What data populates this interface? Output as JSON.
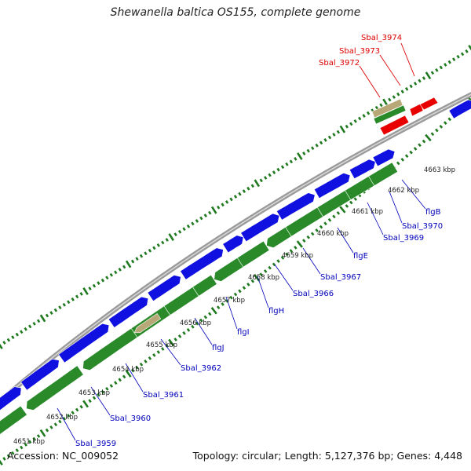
{
  "title": "Shewanella baltica OS155, complete genome",
  "accession": "Accession: NC_009052",
  "topology": "Topology: circular; Length: 5,127,376 bp; Genes: 4,448",
  "colors": {
    "forward_gene": "#1010e0",
    "reverse_gene": "#2a8a2a",
    "highlight_gene": "#e80000",
    "pseudo_gene": "#b8a878",
    "backbone": "#9a9a9a",
    "tick": "#1f7a1f",
    "gene_label": "#0000bb",
    "highlight_label": "#dd0000",
    "kbp_label": "#222222"
  },
  "kbp_labels": [
    "4651 kbp",
    "4652 kbp",
    "4653 kbp",
    "4654 kbp",
    "4655 kbp",
    "4656 kbp",
    "4657 kbp",
    "4658 kbp",
    "4659 kbp",
    "4660 kbp",
    "4661 kbp",
    "4662 kbp",
    "4663 kbp"
  ],
  "gene_labels": [
    "Sbal_3959",
    "Sbal_3960",
    "Sbal_3961",
    "Sbal_3962",
    "flgJ",
    "flgI",
    "flgH",
    "Sbal_3966",
    "Sbal_3967",
    "flgE",
    "Sbal_3969",
    "Sbal_3970",
    "flgB"
  ],
  "highlight_labels": [
    "Sbal_3972",
    "Sbal_3973",
    "Sbal_3974"
  ]
}
